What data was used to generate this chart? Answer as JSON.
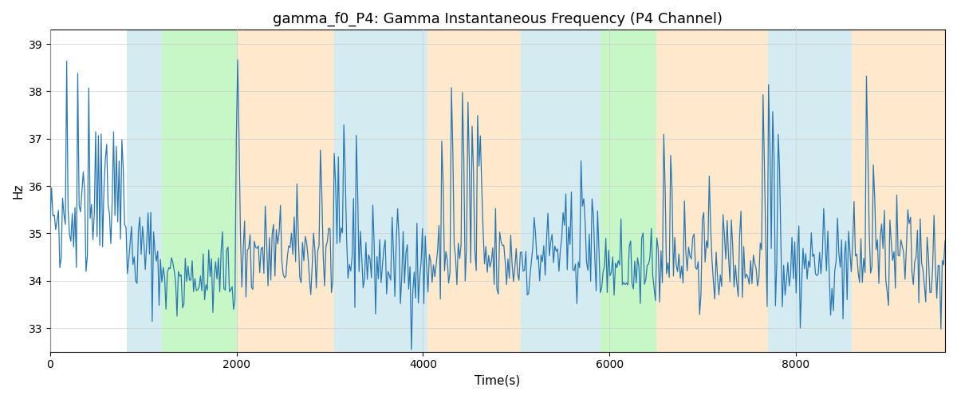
{
  "title": "gamma_f0_P4: Gamma Instantaneous Frequency (P4 Channel)",
  "xlabel": "Time(s)",
  "ylabel": "Hz",
  "xlim": [
    0,
    9600
  ],
  "ylim": [
    32.5,
    39.3
  ],
  "yticks": [
    33,
    34,
    35,
    36,
    37,
    38,
    39
  ],
  "xticks": [
    0,
    2000,
    4000,
    6000,
    8000
  ],
  "line_color": "#2878b5",
  "line_width": 0.9,
  "background_color": "#ffffff",
  "grid_color": "#cccccc",
  "colored_bands": [
    {
      "xmin": 820,
      "xmax": 1200,
      "color": "#add8e6",
      "alpha": 0.5
    },
    {
      "xmin": 1200,
      "xmax": 2000,
      "color": "#90ee90",
      "alpha": 0.5
    },
    {
      "xmin": 2000,
      "xmax": 3050,
      "color": "#ffd59a",
      "alpha": 0.5
    },
    {
      "xmin": 3050,
      "xmax": 3600,
      "color": "#add8e6",
      "alpha": 0.5
    },
    {
      "xmin": 3600,
      "xmax": 4050,
      "color": "#add8e6",
      "alpha": 0.5
    },
    {
      "xmin": 4050,
      "xmax": 5050,
      "color": "#ffd59a",
      "alpha": 0.5
    },
    {
      "xmin": 5050,
      "xmax": 5500,
      "color": "#add8e6",
      "alpha": 0.5
    },
    {
      "xmin": 5500,
      "xmax": 5750,
      "color": "#add8e6",
      "alpha": 0.5
    },
    {
      "xmin": 5750,
      "xmax": 5900,
      "color": "#add8e6",
      "alpha": 0.5
    },
    {
      "xmin": 5900,
      "xmax": 6500,
      "color": "#90ee90",
      "alpha": 0.5
    },
    {
      "xmin": 6500,
      "xmax": 7700,
      "color": "#ffd59a",
      "alpha": 0.5
    },
    {
      "xmin": 7700,
      "xmax": 8600,
      "color": "#add8e6",
      "alpha": 0.5
    },
    {
      "xmin": 8600,
      "xmax": 9600,
      "color": "#ffd59a",
      "alpha": 0.5
    }
  ],
  "seed": 42,
  "n_points": 650,
  "base_freq": 34.5,
  "title_fontsize": 13
}
